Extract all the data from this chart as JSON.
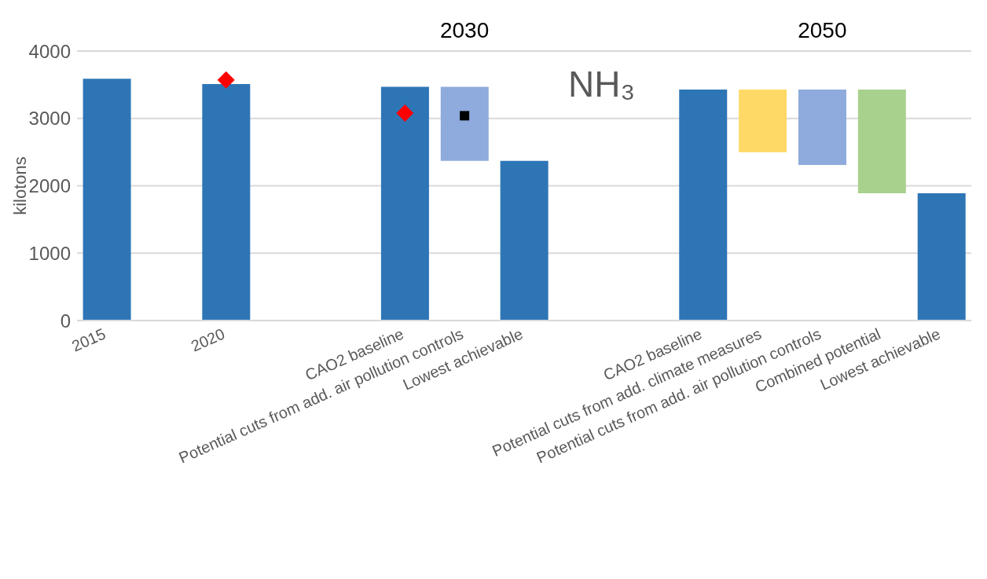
{
  "chart_data": {
    "type": "bar",
    "categories": [
      "2015",
      null,
      "2020",
      null,
      null,
      "CAO2 baseline",
      "Potential cuts from add. air pollution controls",
      "Lowest achievable",
      null,
      null,
      "CAO2 baseline",
      "Potential cuts from add. climate measures",
      "Potential cuts from add. air pollution controls",
      "Combined potential",
      "Lowest achievable"
    ],
    "ylabel": "kilotons",
    "ylim": [
      0,
      4000
    ],
    "yticks": [
      0,
      1000,
      2000,
      3000,
      4000
    ],
    "grid": "y",
    "legend": false,
    "annotations": [
      "2030",
      "2050",
      "NH₃"
    ],
    "series": [
      {
        "values": [
          3590,
          null,
          3510,
          null,
          null,
          3470,
          1100,
          2370,
          null,
          null,
          3430,
          930,
          1120,
          1540,
          1890
        ],
        "base": [
          0,
          null,
          0,
          null,
          null,
          0,
          2370,
          0,
          null,
          null,
          0,
          2500,
          2310,
          1890,
          0
        ],
        "colors": [
          "#2e75b6",
          null,
          "#2e75b6",
          null,
          null,
          "#2e75b6",
          "#8faadc",
          "#2e75b6",
          null,
          null,
          "#2e75b6",
          "#ffd966",
          "#8faadc",
          "#a9d18e",
          "#2e75b6"
        ]
      },
      {
        "type": "scatter",
        "values": [
          null,
          null,
          3570,
          null,
          null,
          3080,
          null,
          null,
          null,
          null,
          null,
          null,
          null,
          null,
          null
        ],
        "color": "#ff0000",
        "marker": "diamond"
      },
      {
        "type": "scatter",
        "values": [
          null,
          null,
          null,
          null,
          null,
          null,
          3040,
          null,
          null,
          null,
          null,
          null,
          null,
          null,
          null
        ],
        "color": "#000000",
        "marker": "square"
      }
    ]
  }
}
